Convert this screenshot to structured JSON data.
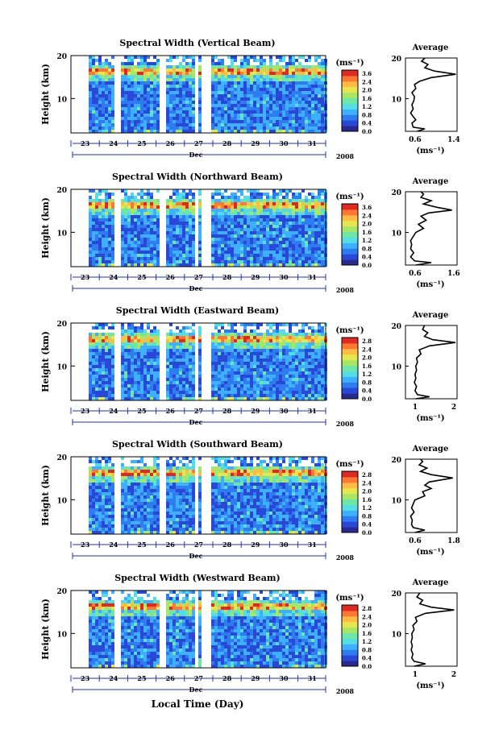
{
  "figure": {
    "xlabel": "Local Time (Day)",
    "month_label": "Dec",
    "year_label": "2008",
    "colorbar_unit": "(ms⁻¹)",
    "profile_title": "Average",
    "profile_unit": "(ms⁻¹)"
  },
  "colormap": [
    "#2a2a8e",
    "#2a48d8",
    "#2f7cf0",
    "#3fb0ff",
    "#55dde6",
    "#6ee6a8",
    "#a8e66a",
    "#e6e650",
    "#ffbb44",
    "#ff7733",
    "#dd2a22"
  ],
  "chart_data": [
    {
      "type": "heatmap",
      "title": "Spectral Width (Vertical Beam)",
      "ylabel": "Height (km)",
      "ylim": [
        2,
        20
      ],
      "y_ticks": [
        "10",
        "20"
      ],
      "x_ticks": [
        "23",
        "24",
        "25",
        "26",
        "27",
        "28",
        "29",
        "30",
        "31"
      ],
      "colorbar_ticks": [
        "3.6",
        "2.4",
        "2.0",
        "1.6",
        "1.2",
        "0.8",
        "0.4",
        "0.0"
      ],
      "profile": {
        "xlim": [
          0.6,
          1.4
        ],
        "x_ticks": [
          "0.6",
          "1.4"
        ],
        "points": [
          [
            0.78,
            2
          ],
          [
            0.9,
            2.6
          ],
          [
            0.72,
            3
          ],
          [
            0.7,
            4
          ],
          [
            0.76,
            4.8
          ],
          [
            0.72,
            5.6
          ],
          [
            0.68,
            6.5
          ],
          [
            0.72,
            7.5
          ],
          [
            0.7,
            8.5
          ],
          [
            0.73,
            9.5
          ],
          [
            0.74,
            10.5
          ],
          [
            0.7,
            11.5
          ],
          [
            0.76,
            12.5
          ],
          [
            0.74,
            13.5
          ],
          [
            0.82,
            14.3
          ],
          [
            1.0,
            15.2
          ],
          [
            1.38,
            16
          ],
          [
            1.05,
            16.8
          ],
          [
            0.9,
            17.6
          ],
          [
            0.95,
            18.4
          ],
          [
            0.85,
            19.2
          ],
          [
            0.9,
            20
          ]
        ]
      }
    },
    {
      "type": "heatmap",
      "title": "Spectral Width (Northward Beam)",
      "ylabel": "Height (km)",
      "ylim": [
        2,
        20
      ],
      "y_ticks": [
        "10",
        "20"
      ],
      "x_ticks": [
        "23",
        "24",
        "25",
        "26",
        "27",
        "28",
        "29",
        "30",
        "31"
      ],
      "colorbar_ticks": [
        "3.6",
        "2.4",
        "2.0",
        "1.6",
        "1.2",
        "0.8",
        "0.4",
        "0.0"
      ],
      "profile": {
        "xlim": [
          0.6,
          1.6
        ],
        "x_ticks": [
          "0.6",
          "1.6"
        ],
        "points": [
          [
            0.8,
            2
          ],
          [
            1.1,
            2.6
          ],
          [
            0.78,
            3
          ],
          [
            0.7,
            4
          ],
          [
            0.76,
            5
          ],
          [
            0.7,
            6
          ],
          [
            0.72,
            7
          ],
          [
            0.7,
            8
          ],
          [
            0.75,
            9
          ],
          [
            0.8,
            10
          ],
          [
            0.95,
            11
          ],
          [
            0.85,
            12
          ],
          [
            1.0,
            13
          ],
          [
            0.9,
            14
          ],
          [
            1.05,
            14.8
          ],
          [
            1.5,
            15.5
          ],
          [
            1.2,
            16.2
          ],
          [
            0.95,
            17
          ],
          [
            1.1,
            17.8
          ],
          [
            0.9,
            18.6
          ],
          [
            0.95,
            19.4
          ],
          [
            0.9,
            20
          ]
        ]
      }
    },
    {
      "type": "heatmap",
      "title": "Spectral Width (Eastward Beam)",
      "ylabel": "Height (km)",
      "ylim": [
        2,
        20
      ],
      "y_ticks": [
        "10",
        "20"
      ],
      "x_ticks": [
        "23",
        "24",
        "25",
        "26",
        "27",
        "28",
        "29",
        "30",
        "31"
      ],
      "colorbar_ticks": [
        "2.8",
        "2.4",
        "2.0",
        "1.6",
        "1.2",
        "0.8",
        "0.4",
        "0.0"
      ],
      "profile": {
        "xlim": [
          0.5,
          2.0
        ],
        "x_ticks": [
          "1",
          "2"
        ],
        "points": [
          [
            0.8,
            2
          ],
          [
            1.2,
            2.5
          ],
          [
            0.85,
            3
          ],
          [
            0.78,
            4
          ],
          [
            0.82,
            5
          ],
          [
            0.76,
            6
          ],
          [
            0.8,
            7
          ],
          [
            0.78,
            8
          ],
          [
            0.82,
            9
          ],
          [
            0.8,
            10
          ],
          [
            0.85,
            11
          ],
          [
            0.82,
            12
          ],
          [
            0.95,
            13
          ],
          [
            0.9,
            14
          ],
          [
            1.2,
            15
          ],
          [
            1.95,
            15.8
          ],
          [
            1.3,
            16.5
          ],
          [
            1.05,
            17.3
          ],
          [
            1.15,
            18.2
          ],
          [
            1.0,
            19
          ],
          [
            1.05,
            20
          ]
        ]
      }
    },
    {
      "type": "heatmap",
      "title": "Spectral Width (Southward Beam)",
      "ylabel": "Height (km)",
      "ylim": [
        2,
        20
      ],
      "y_ticks": [
        "10",
        "20"
      ],
      "x_ticks": [
        "23",
        "24",
        "25",
        "26",
        "27",
        "28",
        "29",
        "30",
        "31"
      ],
      "colorbar_ticks": [
        "2.8",
        "2.4",
        "2.0",
        "1.6",
        "1.2",
        "0.8",
        "0.4",
        "0.0"
      ],
      "profile": {
        "xlim": [
          0.6,
          1.8
        ],
        "x_ticks": [
          "0.6",
          "1.8"
        ],
        "points": [
          [
            0.82,
            2
          ],
          [
            1.05,
            2.6
          ],
          [
            0.78,
            3.2
          ],
          [
            0.74,
            4
          ],
          [
            0.76,
            5
          ],
          [
            0.72,
            6
          ],
          [
            0.8,
            7
          ],
          [
            0.74,
            8
          ],
          [
            0.78,
            9
          ],
          [
            0.82,
            10
          ],
          [
            1.05,
            11
          ],
          [
            1.0,
            12
          ],
          [
            1.2,
            12.8
          ],
          [
            1.05,
            13.6
          ],
          [
            1.15,
            14.4
          ],
          [
            1.7,
            15.4
          ],
          [
            1.2,
            16.2
          ],
          [
            0.95,
            17
          ],
          [
            1.1,
            17.8
          ],
          [
            0.92,
            18.6
          ],
          [
            1.0,
            19.4
          ],
          [
            0.95,
            20
          ]
        ]
      }
    },
    {
      "type": "heatmap",
      "title": "Spectral Width (Westward Beam)",
      "ylabel": "Height (km)",
      "ylim": [
        2,
        20
      ],
      "y_ticks": [
        "10",
        "20"
      ],
      "x_ticks": [
        "23",
        "24",
        "25",
        "26",
        "27",
        "28",
        "29",
        "30",
        "31"
      ],
      "colorbar_ticks": [
        "2.8",
        "2.4",
        "2.0",
        "1.6",
        "1.2",
        "0.8",
        "0.4",
        "0.0"
      ],
      "profile": {
        "xlim": [
          0.6,
          2.4
        ],
        "x_ticks": [
          "1",
          "2"
        ],
        "points": [
          [
            0.9,
            2
          ],
          [
            1.3,
            2.6
          ],
          [
            0.9,
            3.2
          ],
          [
            0.82,
            4
          ],
          [
            0.86,
            5
          ],
          [
            0.8,
            6
          ],
          [
            0.84,
            7
          ],
          [
            0.8,
            8
          ],
          [
            0.84,
            9
          ],
          [
            0.82,
            10
          ],
          [
            0.9,
            11
          ],
          [
            0.86,
            12
          ],
          [
            1.0,
            13
          ],
          [
            0.95,
            14
          ],
          [
            1.3,
            15
          ],
          [
            2.3,
            15.8
          ],
          [
            1.5,
            16.5
          ],
          [
            1.1,
            17.3
          ],
          [
            1.2,
            18.2
          ],
          [
            1.0,
            19
          ],
          [
            1.1,
            20
          ]
        ]
      }
    }
  ]
}
